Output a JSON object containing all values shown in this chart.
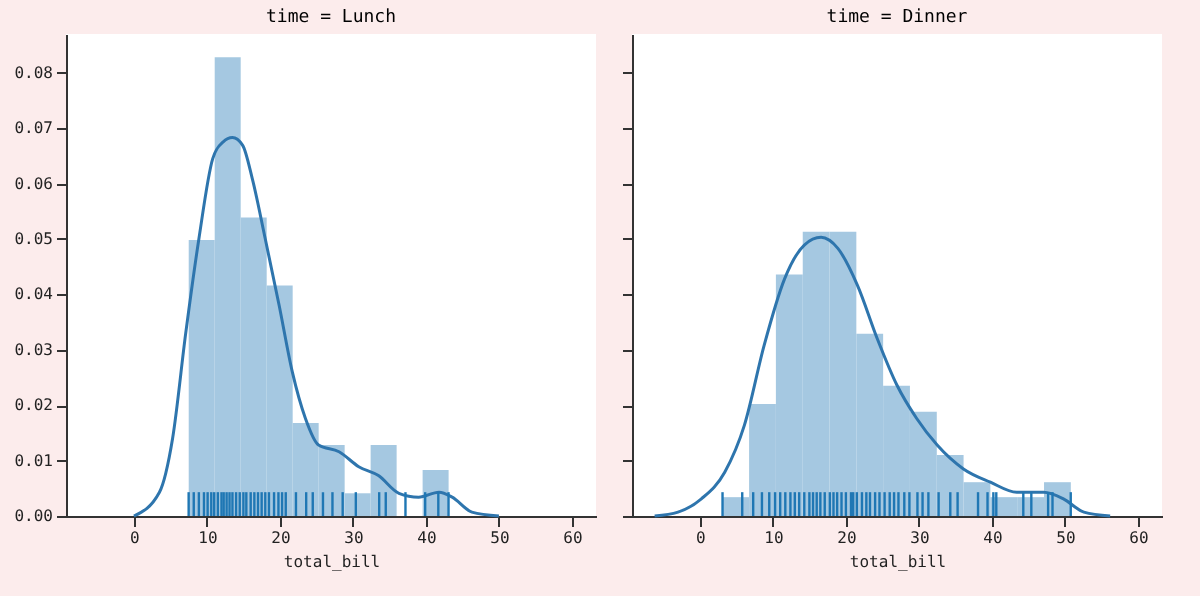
{
  "chart_data": [
    {
      "type": "histogram",
      "title": "time = Lunch",
      "xlabel": "total_bill",
      "xlim": [
        -9.3,
        63.3
      ],
      "ylim": [
        0,
        0.087
      ],
      "xticks": [
        0,
        10,
        20,
        30,
        40,
        50,
        60
      ],
      "yticks": [
        {
          "value": 0,
          "label": "0.00"
        },
        {
          "value": 0.01,
          "label": "0.01"
        },
        {
          "value": 0.02,
          "label": "0.02"
        },
        {
          "value": 0.03,
          "label": "0.03"
        },
        {
          "value": 0.04,
          "label": "0.04"
        },
        {
          "value": 0.05,
          "label": "0.05"
        },
        {
          "value": 0.06,
          "label": "0.06"
        },
        {
          "value": 0.07,
          "label": "0.07"
        },
        {
          "value": 0.08,
          "label": "0.08"
        }
      ],
      "series": [
        {
          "type": "histogram",
          "color": "#a5c8e1",
          "bins": [
            7.51,
            11.07,
            14.63,
            18.19,
            21.75,
            25.31,
            28.87,
            32.43,
            35.99,
            39.55,
            43.11
          ],
          "values": [
            0.0498,
            0.0828,
            0.0539,
            0.0416,
            0.0168,
            0.0128,
            0.0041,
            0.0128,
            0,
            0.0083
          ]
        },
        {
          "type": "line",
          "color": "#2e75ad",
          "x": [
            0,
            3.5,
            5.3,
            7.1,
            8.9,
            10.8,
            12.2,
            13.5,
            14.9,
            16.2,
            18.0,
            19.9,
            21.7,
            23.5,
            25.3,
            28.1,
            30.8,
            33.5,
            36.3,
            39.0,
            41.8,
            43.6,
            46.3,
            50
          ],
          "values": [
            0,
            0.0043,
            0.014,
            0.033,
            0.05,
            0.0645,
            0.0675,
            0.0683,
            0.0669,
            0.061,
            0.05,
            0.038,
            0.026,
            0.0176,
            0.0128,
            0.0116,
            0.0089,
            0.0073,
            0.0041,
            0.0034,
            0.0043,
            0.0034,
            0.0007,
            0
          ]
        },
        {
          "type": "bar",
          "color": "#1f77b4",
          "x": [
            7.5,
            8.2,
            8.9,
            9.6,
            10.1,
            10.6,
            11.0,
            11.5,
            12.0,
            12.3,
            12.7,
            13.1,
            13.5,
            14.0,
            14.5,
            15.0,
            15.4,
            16.0,
            16.5,
            17.0,
            17.5,
            18.0,
            18.5,
            19.2,
            19.8,
            20.3,
            20.8,
            22.2,
            23.6,
            24.5,
            25.9,
            27.2,
            28.6,
            30.4,
            33.6,
            34.5,
            37.2,
            39.9,
            41.7,
            43.1
          ],
          "values": [
            0.0043,
            0.0043,
            0.0043,
            0.0043,
            0.0043,
            0.0043,
            0.0043,
            0.0043,
            0.0043,
            0.0043,
            0.0043,
            0.0043,
            0.0043,
            0.0043,
            0.0043,
            0.0043,
            0.0043,
            0.0043,
            0.0043,
            0.0043,
            0.0043,
            0.0043,
            0.0043,
            0.0043,
            0.0043,
            0.0043,
            0.0043,
            0.0043,
            0.0043,
            0.0043,
            0.0043,
            0.0043,
            0.0043,
            0.0043,
            0.0043,
            0.0043,
            0.0043,
            0.0043,
            0.0043,
            0.0043
          ]
        }
      ]
    },
    {
      "type": "histogram",
      "title": "time = Dinner",
      "xlabel": "total_bill",
      "xlim": [
        -9.3,
        63.3
      ],
      "ylim": [
        0,
        0.087
      ],
      "tick_labels": "x",
      "xticks": [
        0,
        10,
        20,
        30,
        40,
        50,
        60
      ],
      "yticks": [
        0,
        0.01,
        0.02,
        0.03,
        0.04,
        0.05,
        0.06,
        0.07,
        0.08
      ],
      "series": [
        {
          "type": "histogram",
          "color": "#a5c8e1",
          "bins": [
            3.07,
            6.74,
            10.41,
            14.09,
            17.76,
            21.43,
            25.1,
            28.77,
            32.45,
            36.12,
            39.79,
            43.46,
            47.14,
            50.81
          ],
          "values": [
            0.0034,
            0.0202,
            0.0436,
            0.0513,
            0.0513,
            0.0329,
            0.0235,
            0.0188,
            0.011,
            0.0061,
            0.0034,
            0.0034,
            0.0061
          ]
        },
        {
          "type": "line",
          "color": "#2e75ad",
          "x": [
            -6.2,
            -3,
            0.2,
            3.4,
            6.1,
            8.8,
            11.6,
            14.3,
            16.6,
            18.9,
            21.6,
            24.3,
            27.0,
            29.7,
            32.5,
            36.1,
            39.8,
            43.4,
            47.1,
            49.8,
            52.6,
            56.2
          ],
          "values": [
            0,
            0.0007,
            0.0031,
            0.0079,
            0.0164,
            0.0308,
            0.0428,
            0.0489,
            0.0503,
            0.0483,
            0.0416,
            0.032,
            0.0236,
            0.0176,
            0.0128,
            0.0085,
            0.0061,
            0.0043,
            0.0043,
            0.0031,
            0.0007,
            0
          ]
        },
        {
          "type": "bar",
          "color": "#1f77b4",
          "x": [
            3.1,
            5.8,
            7.3,
            8.5,
            9.5,
            10.3,
            11.0,
            11.7,
            12.4,
            13.0,
            13.6,
            14.3,
            15.0,
            15.5,
            16.0,
            16.5,
            17.1,
            17.8,
            18.3,
            18.8,
            19.4,
            20.0,
            20.7,
            21.0,
            21.5,
            22.2,
            22.8,
            23.3,
            24.0,
            24.6,
            25.3,
            26.0,
            26.6,
            27.2,
            28.0,
            28.7,
            29.8,
            30.5,
            31.3,
            32.7,
            34.3,
            35.3,
            38.1,
            39.4,
            40.2,
            40.6,
            44.3,
            45.4,
            47.7,
            48.3,
            50.8
          ],
          "values": [
            0.0043,
            0.0043,
            0.0043,
            0.0043,
            0.0043,
            0.0043,
            0.0043,
            0.0043,
            0.0043,
            0.0043,
            0.0043,
            0.0043,
            0.0043,
            0.0043,
            0.0043,
            0.0043,
            0.0043,
            0.0043,
            0.0043,
            0.0043,
            0.0043,
            0.0043,
            0.0043,
            0.0043,
            0.0043,
            0.0043,
            0.0043,
            0.0043,
            0.0043,
            0.0043,
            0.0043,
            0.0043,
            0.0043,
            0.0043,
            0.0043,
            0.0043,
            0.0043,
            0.0043,
            0.0043,
            0.0043,
            0.0043,
            0.0043,
            0.0043,
            0.0043,
            0.0043,
            0.0043,
            0.0043,
            0.0043,
            0.0043,
            0.0043,
            0.0043
          ]
        }
      ]
    }
  ]
}
